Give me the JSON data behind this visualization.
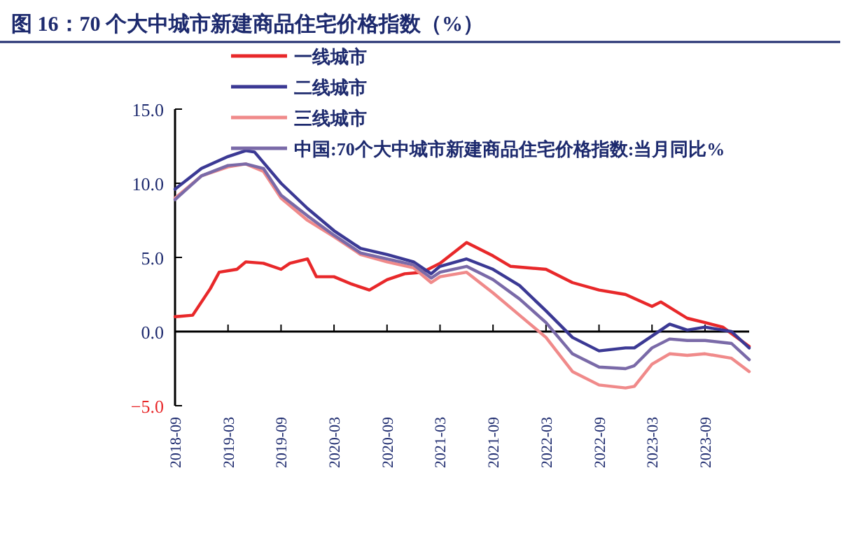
{
  "chart_data": {
    "type": "line",
    "title": "图 16：70 个大中城市新建商品住宅价格指数（%）",
    "xlim": [
      "2018-09",
      "2024-02"
    ],
    "xticks": [
      "2018-09",
      "2019-03",
      "2019-09",
      "2020-03",
      "2020-09",
      "2021-03",
      "2021-09",
      "2022-03",
      "2022-09",
      "2023-03",
      "2023-09"
    ],
    "ylim": [
      -5,
      15
    ],
    "yticks": [
      {
        "value": -5,
        "label": "−5.0"
      },
      {
        "value": 0,
        "label": "0.0"
      },
      {
        "value": 5,
        "label": "5.0"
      },
      {
        "value": 10,
        "label": "10.0"
      },
      {
        "value": 15,
        "label": "15.0"
      }
    ],
    "legend": "top left",
    "marker": "none",
    "line_style": "solid",
    "series": [
      {
        "name": "一线城市",
        "color": "#e8282a",
        "x": [
          "2018-09",
          "2018-11",
          "2019-01",
          "2019-02",
          "2019-04",
          "2019-05",
          "2019-07",
          "2019-09",
          "2019-10",
          "2019-12",
          "2020-01",
          "2020-03",
          "2020-05",
          "2020-07",
          "2020-09",
          "2020-11",
          "2021-01",
          "2021-03",
          "2021-06",
          "2021-09",
          "2021-11",
          "2022-03",
          "2022-06",
          "2022-09",
          "2022-12",
          "2023-03",
          "2023-04",
          "2023-07",
          "2023-09",
          "2023-11",
          "2024-02"
        ],
        "values": [
          1.0,
          1.1,
          2.9,
          4.0,
          4.2,
          4.7,
          4.6,
          4.2,
          4.6,
          4.9,
          3.7,
          3.7,
          3.2,
          2.8,
          3.5,
          3.9,
          4.0,
          4.6,
          6.0,
          5.1,
          4.4,
          4.2,
          3.3,
          2.8,
          2.5,
          1.7,
          2.0,
          0.9,
          0.6,
          0.3,
          -1.0
        ]
      },
      {
        "name": "二线城市",
        "color": "#3b3994",
        "x": [
          "2018-09",
          "2018-12",
          "2019-03",
          "2019-05",
          "2019-06",
          "2019-09",
          "2019-12",
          "2020-03",
          "2020-06",
          "2020-09",
          "2020-12",
          "2021-02",
          "2021-03",
          "2021-06",
          "2021-09",
          "2021-12",
          "2022-03",
          "2022-06",
          "2022-09",
          "2022-12",
          "2023-01",
          "2023-03",
          "2023-05",
          "2023-07",
          "2023-09",
          "2023-12",
          "2024-02"
        ],
        "values": [
          9.6,
          11.0,
          11.8,
          12.2,
          12.1,
          10.0,
          8.3,
          6.8,
          5.6,
          5.2,
          4.7,
          3.9,
          4.4,
          4.9,
          4.2,
          3.1,
          1.4,
          -0.4,
          -1.3,
          -1.1,
          -1.1,
          -0.3,
          0.5,
          0.1,
          0.3,
          0.0,
          -1.1
        ]
      },
      {
        "name": "三线城市",
        "color": "#f08a8a",
        "x": [
          "2018-09",
          "2018-12",
          "2019-03",
          "2019-05",
          "2019-07",
          "2019-09",
          "2019-12",
          "2020-03",
          "2020-06",
          "2020-09",
          "2020-12",
          "2021-02",
          "2021-03",
          "2021-06",
          "2021-09",
          "2021-12",
          "2022-03",
          "2022-06",
          "2022-09",
          "2022-12",
          "2023-01",
          "2023-03",
          "2023-05",
          "2023-07",
          "2023-09",
          "2023-12",
          "2024-02"
        ],
        "values": [
          9.0,
          10.5,
          11.1,
          11.3,
          10.8,
          9.0,
          7.5,
          6.4,
          5.2,
          4.7,
          4.3,
          3.3,
          3.7,
          4.0,
          2.6,
          1.1,
          -0.4,
          -2.7,
          -3.6,
          -3.8,
          -3.7,
          -2.2,
          -1.5,
          -1.6,
          -1.5,
          -1.8,
          -2.7
        ]
      },
      {
        "name": "中国:70个大中城市新建商品住宅价格指数:当月同比%",
        "color": "#7a6aa8",
        "x": [
          "2018-09",
          "2018-12",
          "2019-03",
          "2019-05",
          "2019-07",
          "2019-09",
          "2019-12",
          "2020-03",
          "2020-06",
          "2020-09",
          "2020-12",
          "2021-02",
          "2021-03",
          "2021-06",
          "2021-09",
          "2021-12",
          "2022-03",
          "2022-06",
          "2022-09",
          "2022-12",
          "2023-01",
          "2023-03",
          "2023-05",
          "2023-07",
          "2023-09",
          "2023-12",
          "2024-02"
        ],
        "values": [
          8.9,
          10.5,
          11.2,
          11.3,
          11.0,
          9.2,
          7.8,
          6.5,
          5.3,
          4.9,
          4.5,
          3.6,
          4.0,
          4.4,
          3.5,
          2.2,
          0.6,
          -1.5,
          -2.4,
          -2.5,
          -2.3,
          -1.1,
          -0.5,
          -0.6,
          -0.6,
          -0.8,
          -1.9
        ]
      }
    ]
  }
}
